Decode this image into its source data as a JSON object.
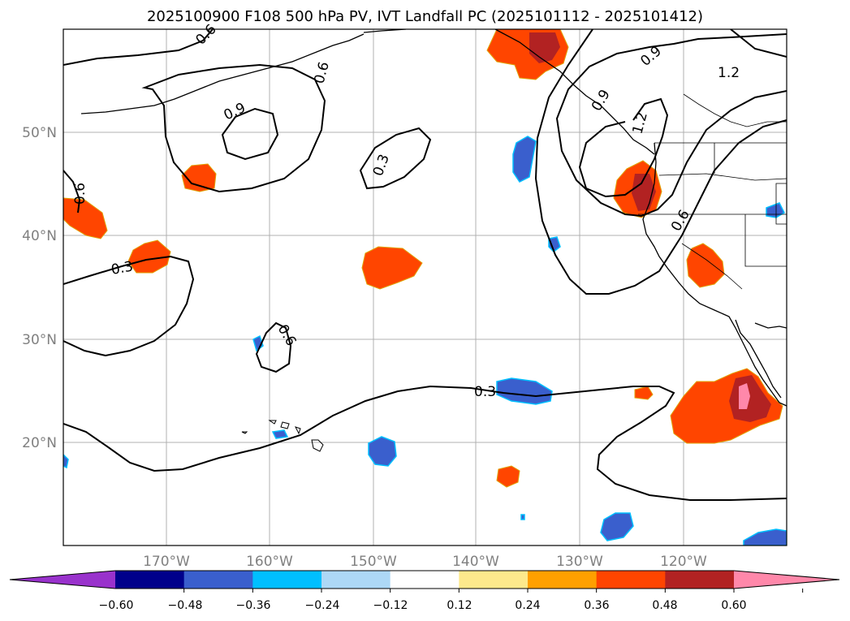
{
  "title": "2025100900 F108 500 hPa PV, IVT Landfall PC (2025101112 - 2025101412)",
  "lon_labels": [
    "170°W",
    "160°W",
    "150°W",
    "140°W",
    "130°W",
    "120°W"
  ],
  "lat_labels": [
    "50°N",
    "40°N",
    "30°N",
    "20°N"
  ],
  "contour_labels": [
    "0.9",
    "0.9",
    "1.2",
    "1.2",
    "0.6",
    "0.6",
    "0.6",
    "0.6",
    "0.3",
    "0.3",
    "0.3",
    "0.6",
    "0.9"
  ],
  "colorbar": {
    "colors": [
      "#9932cc",
      "#00008b",
      "#3a5fcd",
      "#00bfff",
      "#add8f6",
      "#ffffff",
      "#fde98c",
      "#ffa000",
      "#ff4500",
      "#b22222",
      "#ff88aa"
    ],
    "tick_labels": [
      "−0.60",
      "−0.48",
      "−0.36",
      "−0.24",
      "−0.12",
      "0.12",
      "0.24",
      "0.36",
      "0.48",
      "0.60"
    ]
  },
  "colors": {
    "positive_core": "#ff4500",
    "strong": "#b22222",
    "max": "#ff88aa",
    "negative": "#3a5fcd",
    "edge_pos": "#fde98c",
    "edge_neg": "#00bfff"
  }
}
